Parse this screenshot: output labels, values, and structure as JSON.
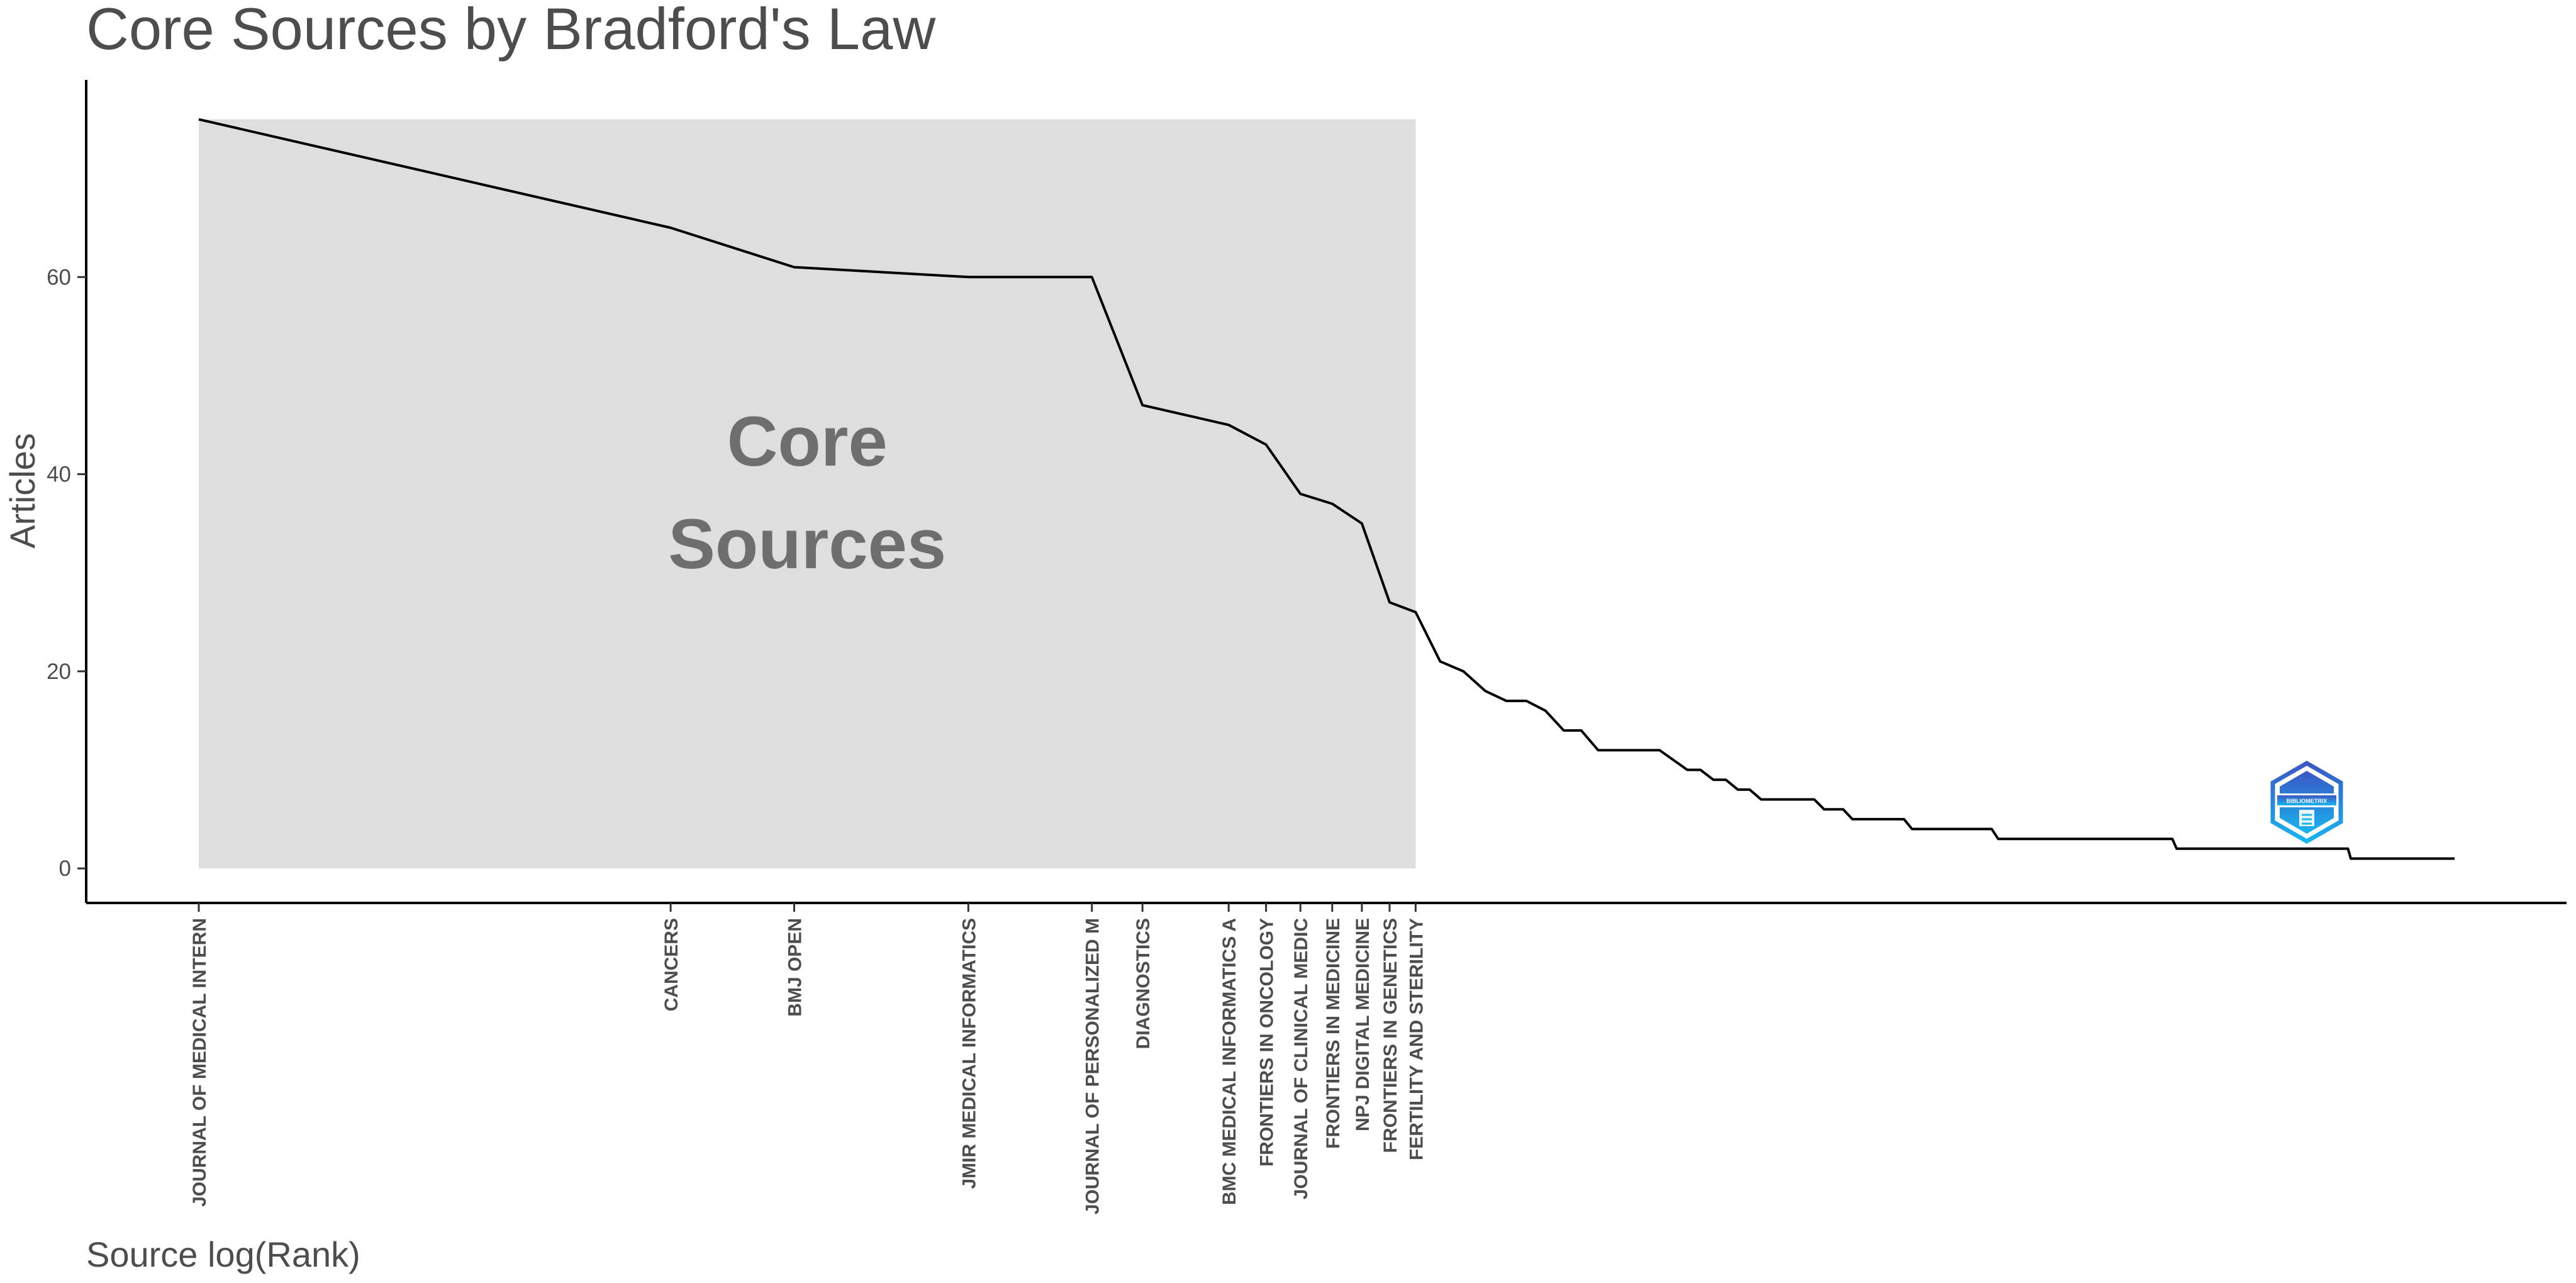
{
  "chart_data": {
    "type": "line",
    "title": "Core Sources by Bradford's Law",
    "xlabel": "Source log(Rank)",
    "ylabel": "Articles",
    "x_scale": "log",
    "xlim": [
      1,
      191
    ],
    "ylim": [
      -3.5,
      80
    ],
    "y_ticks": [
      0,
      20,
      40,
      60
    ],
    "grid": false,
    "legend": "none",
    "line_color": "#000000",
    "core_zone": {
      "label_line1": "Core",
      "label_line2": "Sources",
      "x_from": 1,
      "x_to": 17,
      "y_from": 0,
      "y_to": 76,
      "color": "#dedede"
    },
    "core_sources": [
      {
        "rank": 1,
        "name": "JOURNAL OF MEDICAL INTERN",
        "articles": 76
      },
      {
        "rank": 3,
        "name": "CANCERS",
        "articles": 65
      },
      {
        "rank": 4,
        "name": "BMJ OPEN",
        "articles": 61
      },
      {
        "rank": 6,
        "name": "JMIR MEDICAL INFORMATICS",
        "articles": 60
      },
      {
        "rank": 8,
        "name": "JOURNAL OF PERSONALIZED M",
        "articles": 60
      },
      {
        "rank": 9,
        "name": "DIAGNOSTICS",
        "articles": 47
      },
      {
        "rank": 11,
        "name": "BMC MEDICAL INFORMATICS A",
        "articles": 45
      },
      {
        "rank": 12,
        "name": "FRONTIERS IN ONCOLOGY",
        "articles": 43
      },
      {
        "rank": 13,
        "name": "JOURNAL OF CLINICAL MEDIC",
        "articles": 38
      },
      {
        "rank": 14,
        "name": "FRONTIERS IN MEDICINE",
        "articles": 37
      },
      {
        "rank": 15,
        "name": "NPJ DIGITAL MEDICINE",
        "articles": 35
      },
      {
        "rank": 16,
        "name": "FRONTIERS IN GENETICS",
        "articles": 27
      },
      {
        "rank": 17,
        "name": "FERTILITY AND STERILITY",
        "articles": 26
      }
    ],
    "curve": [
      [
        1,
        76
      ],
      [
        3,
        65
      ],
      [
        4,
        61
      ],
      [
        6,
        60
      ],
      [
        8,
        60
      ],
      [
        9,
        47
      ],
      [
        11,
        45
      ],
      [
        12,
        43
      ],
      [
        13,
        38
      ],
      [
        14,
        37
      ],
      [
        15,
        35
      ],
      [
        16,
        27
      ],
      [
        17,
        26
      ],
      [
        18,
        21
      ],
      [
        19,
        20
      ],
      [
        20,
        18
      ],
      [
        21,
        17
      ],
      [
        22,
        17
      ],
      [
        23,
        16
      ],
      [
        24,
        14
      ],
      [
        25,
        14
      ],
      [
        26,
        12
      ],
      [
        30,
        12
      ],
      [
        32,
        10
      ],
      [
        33,
        10
      ],
      [
        34,
        9
      ],
      [
        35,
        9
      ],
      [
        36,
        8
      ],
      [
        37,
        8
      ],
      [
        38,
        7
      ],
      [
        43,
        7
      ],
      [
        44,
        6
      ],
      [
        46,
        6
      ],
      [
        47,
        5
      ],
      [
        53,
        5
      ],
      [
        54,
        4
      ],
      [
        65,
        4
      ],
      [
        66,
        3
      ],
      [
        99,
        3
      ],
      [
        100,
        2
      ],
      [
        149,
        2
      ],
      [
        150,
        1
      ],
      [
        191,
        1
      ]
    ]
  },
  "logo": {
    "text": "BIBLIOMETRIX",
    "color_top": "#3b57c4",
    "color_bottom": "#19b4ee"
  }
}
